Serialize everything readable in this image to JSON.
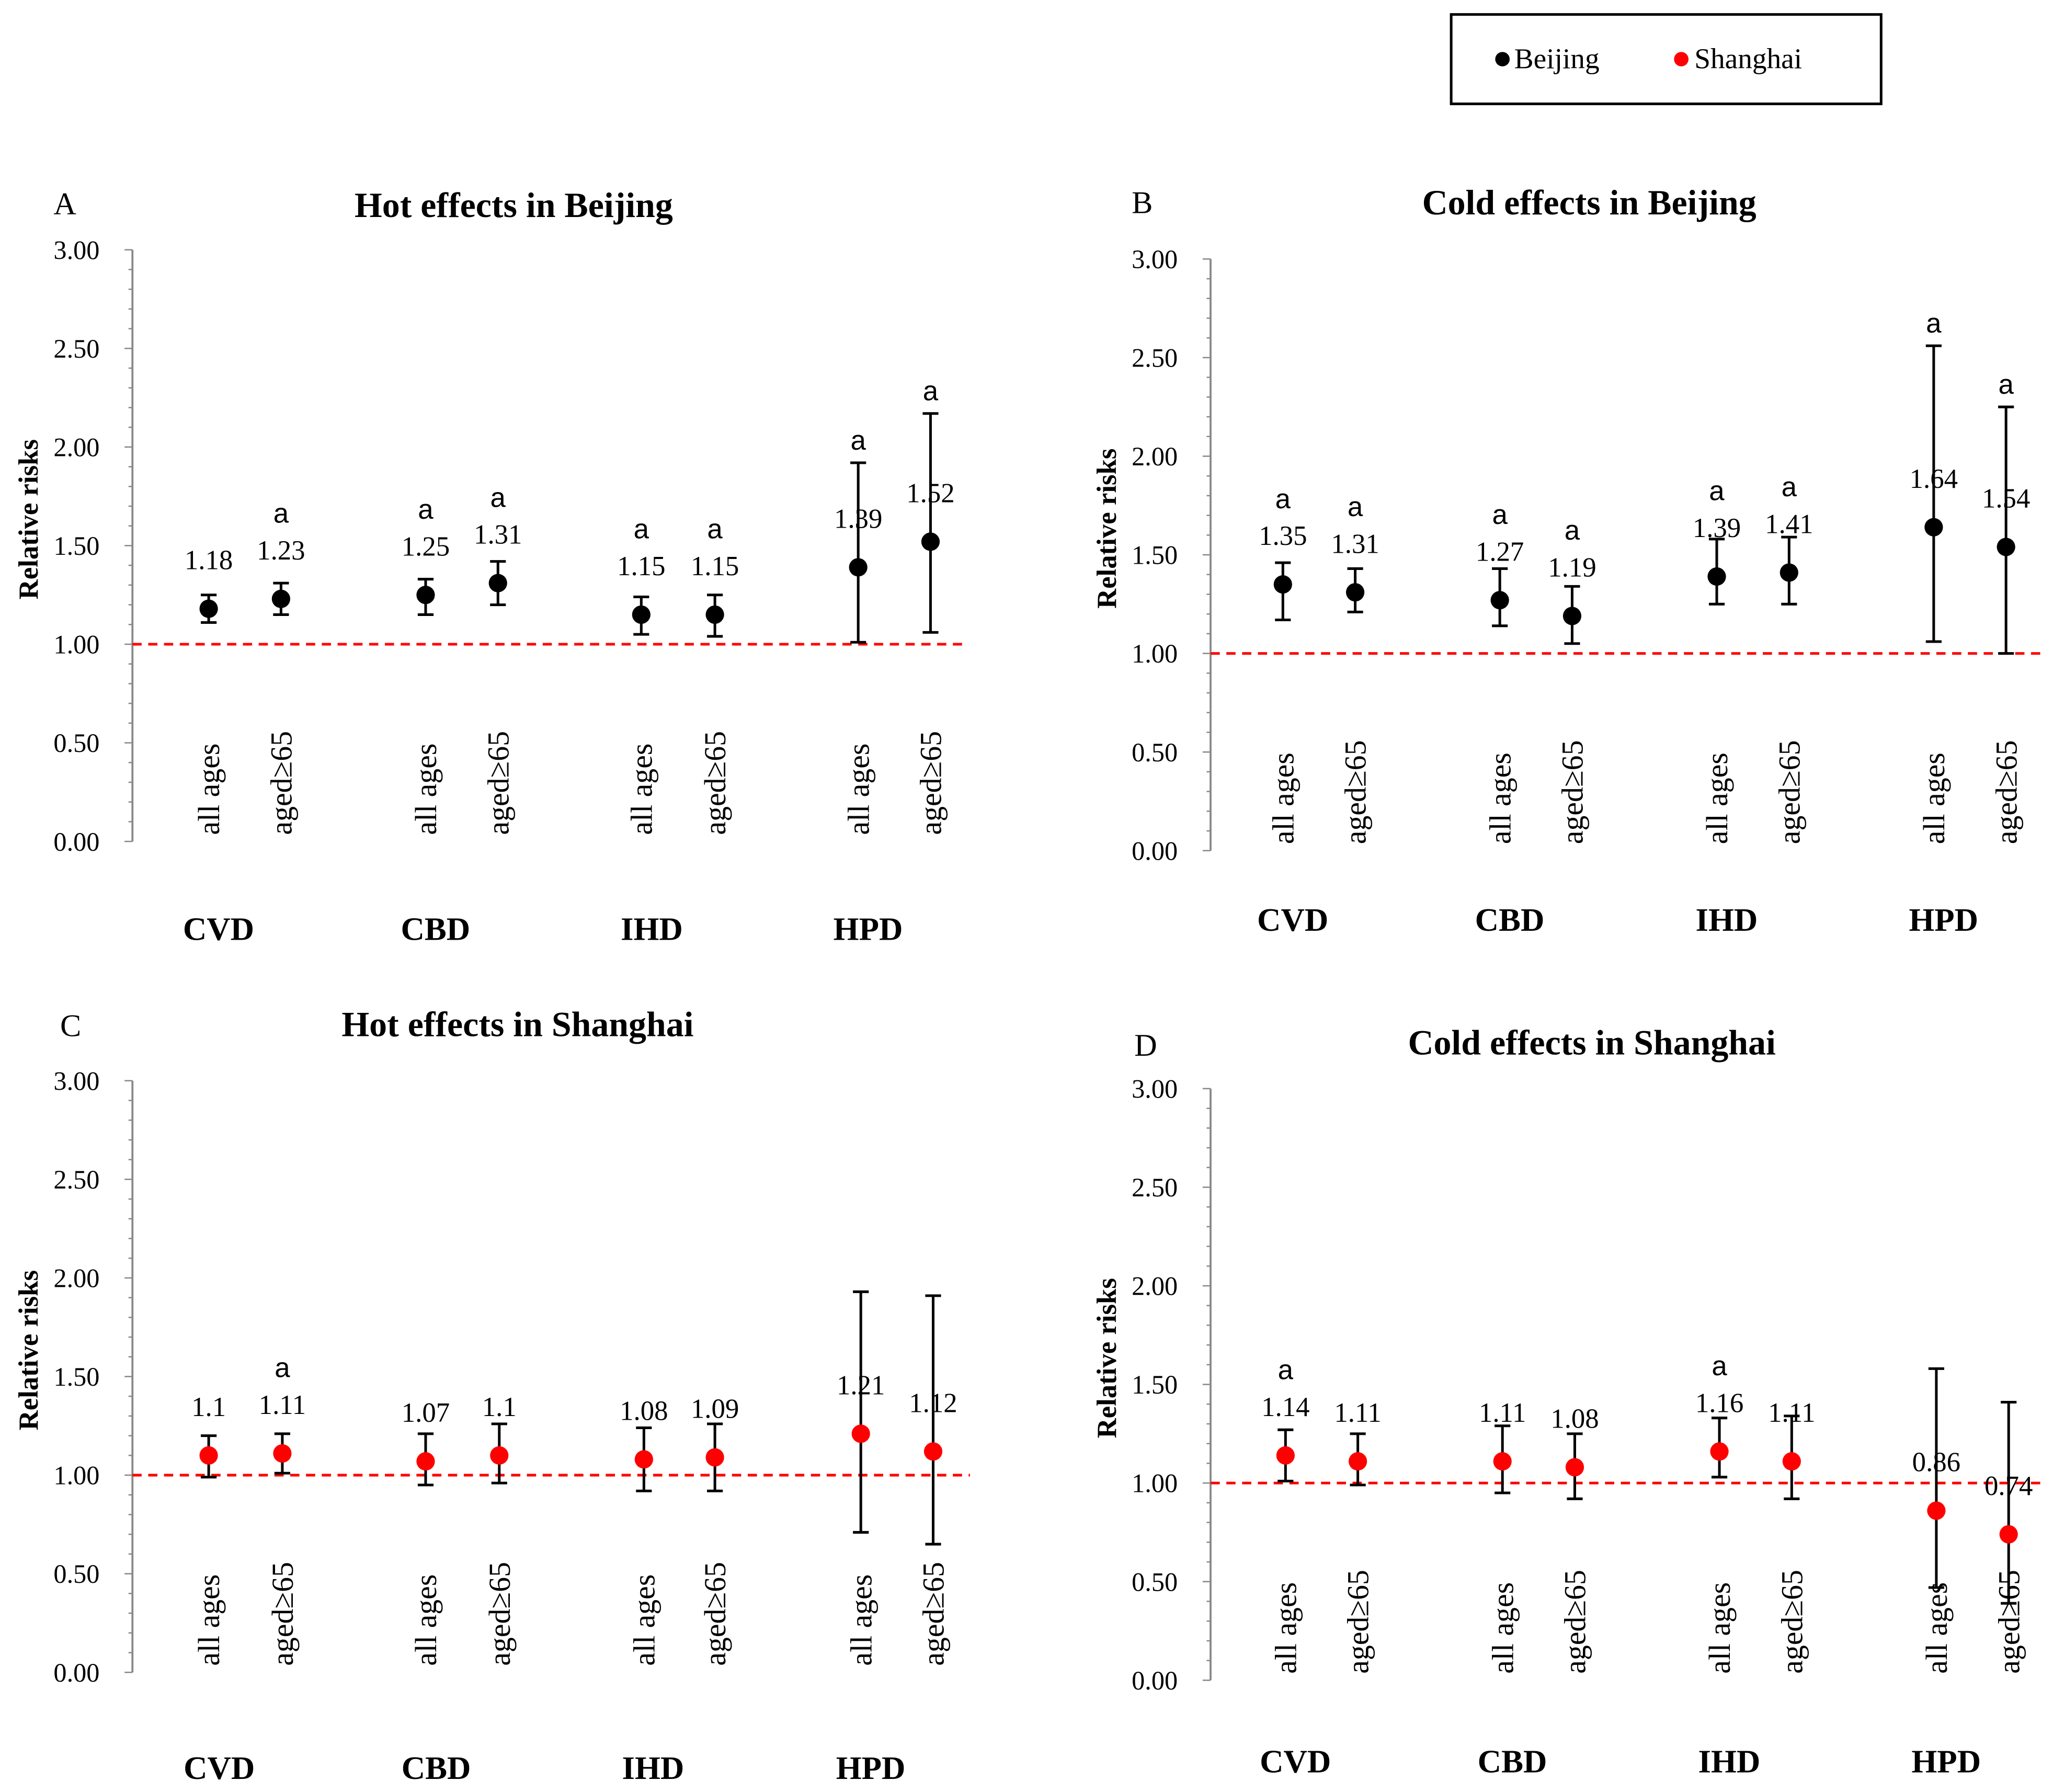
{
  "legend": {
    "items": [
      {
        "name": "Beijing",
        "color": "#000000"
      },
      {
        "name": "Shanghai",
        "color": "#ff0000"
      }
    ]
  },
  "chart_data": [
    {
      "type": "scatter",
      "panel": "A",
      "title": "Hot effects in Beijing",
      "ylabel": "Relative risks",
      "ylim": [
        0,
        3
      ],
      "yticks": [
        "0.00",
        "0.50",
        "1.00",
        "1.50",
        "2.00",
        "2.50",
        "3.00"
      ],
      "reference_line": 1.0,
      "series_name": "Beijing",
      "color": "#000000",
      "categories": [
        "CVD",
        "CBD",
        "IHD",
        "HPD"
      ],
      "groups": [
        "all ages",
        "aged≥65"
      ],
      "points": [
        {
          "cat": "CVD",
          "group": "all ages",
          "rr": 1.18,
          "lo": 1.11,
          "hi": 1.25,
          "label": "1.18",
          "sig": ""
        },
        {
          "cat": "CVD",
          "group": "aged≥65",
          "rr": 1.23,
          "lo": 1.15,
          "hi": 1.31,
          "label": "1.23",
          "sig": "a"
        },
        {
          "cat": "CBD",
          "group": "all ages",
          "rr": 1.25,
          "lo": 1.15,
          "hi": 1.33,
          "label": "1.25",
          "sig": "a"
        },
        {
          "cat": "CBD",
          "group": "aged≥65",
          "rr": 1.31,
          "lo": 1.2,
          "hi": 1.42,
          "label": "1.31",
          "sig": "a"
        },
        {
          "cat": "IHD",
          "group": "all ages",
          "rr": 1.15,
          "lo": 1.05,
          "hi": 1.24,
          "label": "1.15",
          "sig": "a"
        },
        {
          "cat": "IHD",
          "group": "aged≥65",
          "rr": 1.15,
          "lo": 1.04,
          "hi": 1.25,
          "label": "1.15",
          "sig": "a"
        },
        {
          "cat": "HPD",
          "group": "all ages",
          "rr": 1.39,
          "lo": 1.01,
          "hi": 1.92,
          "label": "1.39",
          "sig": "a"
        },
        {
          "cat": "HPD",
          "group": "aged≥65",
          "rr": 1.52,
          "lo": 1.06,
          "hi": 2.17,
          "label": "1.52",
          "sig": "a"
        }
      ]
    },
    {
      "type": "scatter",
      "panel": "B",
      "title": "Cold effects in Beijing",
      "ylabel": "Relative risks",
      "ylim": [
        0,
        3
      ],
      "yticks": [
        "0.00",
        "0.50",
        "1.00",
        "1.50",
        "2.00",
        "2.50",
        "3.00"
      ],
      "reference_line": 1.0,
      "series_name": "Beijing",
      "color": "#000000",
      "categories": [
        "CVD",
        "CBD",
        "IHD",
        "HPD"
      ],
      "groups": [
        "all ages",
        "aged≥65"
      ],
      "points": [
        {
          "cat": "CVD",
          "group": "all ages",
          "rr": 1.35,
          "lo": 1.17,
          "hi": 1.46,
          "label": "1.35",
          "sig": "a"
        },
        {
          "cat": "CVD",
          "group": "aged≥65",
          "rr": 1.31,
          "lo": 1.21,
          "hi": 1.43,
          "label": "1.31",
          "sig": "a"
        },
        {
          "cat": "CBD",
          "group": "all ages",
          "rr": 1.27,
          "lo": 1.14,
          "hi": 1.43,
          "label": "1.27",
          "sig": "a"
        },
        {
          "cat": "CBD",
          "group": "aged≥65",
          "rr": 1.19,
          "lo": 1.05,
          "hi": 1.34,
          "label": "1.19",
          "sig": "a"
        },
        {
          "cat": "IHD",
          "group": "all ages",
          "rr": 1.39,
          "lo": 1.25,
          "hi": 1.58,
          "label": "1.39",
          "sig": "a"
        },
        {
          "cat": "IHD",
          "group": "aged≥65",
          "rr": 1.41,
          "lo": 1.25,
          "hi": 1.59,
          "label": "1.41",
          "sig": "a"
        },
        {
          "cat": "HPD",
          "group": "all ages",
          "rr": 1.64,
          "lo": 1.06,
          "hi": 2.56,
          "label": "1.64",
          "sig": "a"
        },
        {
          "cat": "HPD",
          "group": "aged≥65",
          "rr": 1.54,
          "lo": 1.0,
          "hi": 2.25,
          "label": "1.54",
          "sig": "a"
        }
      ]
    },
    {
      "type": "scatter",
      "panel": "C",
      "title": "Hot effects in Shanghai",
      "ylabel": "Relative risks",
      "ylim": [
        0,
        3
      ],
      "yticks": [
        "0.00",
        "0.50",
        "1.00",
        "1.50",
        "2.00",
        "2.50",
        "3.00"
      ],
      "reference_line": 1.0,
      "series_name": "Shanghai",
      "color": "#ff0000",
      "categories": [
        "CVD",
        "CBD",
        "IHD",
        "HPD"
      ],
      "groups": [
        "all ages",
        "aged≥65"
      ],
      "points": [
        {
          "cat": "CVD",
          "group": "all ages",
          "rr": 1.1,
          "lo": 0.99,
          "hi": 1.2,
          "label": "1.1",
          "sig": ""
        },
        {
          "cat": "CVD",
          "group": "aged≥65",
          "rr": 1.11,
          "lo": 1.01,
          "hi": 1.21,
          "label": "1.11",
          "sig": "a"
        },
        {
          "cat": "CBD",
          "group": "all ages",
          "rr": 1.07,
          "lo": 0.95,
          "hi": 1.21,
          "label": "1.07",
          "sig": ""
        },
        {
          "cat": "CBD",
          "group": "aged≥65",
          "rr": 1.1,
          "lo": 0.96,
          "hi": 1.26,
          "label": "1.1",
          "sig": ""
        },
        {
          "cat": "IHD",
          "group": "all ages",
          "rr": 1.08,
          "lo": 0.92,
          "hi": 1.24,
          "label": "1.08",
          "sig": ""
        },
        {
          "cat": "IHD",
          "group": "aged≥65",
          "rr": 1.09,
          "lo": 0.92,
          "hi": 1.26,
          "label": "1.09",
          "sig": ""
        },
        {
          "cat": "HPD",
          "group": "all ages",
          "rr": 1.21,
          "lo": 0.71,
          "hi": 1.93,
          "label": "1.21",
          "sig": ""
        },
        {
          "cat": "HPD",
          "group": "aged≥65",
          "rr": 1.12,
          "lo": 0.65,
          "hi": 1.91,
          "label": "1.12",
          "sig": ""
        }
      ]
    },
    {
      "type": "scatter",
      "panel": "D",
      "title": "Cold effects in Shanghai",
      "ylabel": "Relative risks",
      "ylim": [
        0,
        3
      ],
      "yticks": [
        "0.00",
        "0.50",
        "1.00",
        "1.50",
        "2.00",
        "2.50",
        "3.00"
      ],
      "reference_line": 1.0,
      "series_name": "Shanghai",
      "color": "#ff0000",
      "categories": [
        "CVD",
        "CBD",
        "IHD",
        "HPD"
      ],
      "groups": [
        "all ages",
        "aged≥65"
      ],
      "points": [
        {
          "cat": "CVD",
          "group": "all ages",
          "rr": 1.14,
          "lo": 1.01,
          "hi": 1.27,
          "label": "1.14",
          "sig": "a"
        },
        {
          "cat": "CVD",
          "group": "aged≥65",
          "rr": 1.11,
          "lo": 0.99,
          "hi": 1.25,
          "label": "1.11",
          "sig": ""
        },
        {
          "cat": "CBD",
          "group": "all ages",
          "rr": 1.11,
          "lo": 0.95,
          "hi": 1.29,
          "label": "1.11",
          "sig": ""
        },
        {
          "cat": "CBD",
          "group": "aged≥65",
          "rr": 1.08,
          "lo": 0.92,
          "hi": 1.25,
          "label": "1.08",
          "sig": ""
        },
        {
          "cat": "IHD",
          "group": "all ages",
          "rr": 1.16,
          "lo": 1.03,
          "hi": 1.33,
          "label": "1.16",
          "sig": "a"
        },
        {
          "cat": "IHD",
          "group": "aged≥65",
          "rr": 1.11,
          "lo": 0.92,
          "hi": 1.34,
          "label": "1.11",
          "sig": ""
        },
        {
          "cat": "HPD",
          "group": "all ages",
          "rr": 0.86,
          "lo": 0.47,
          "hi": 1.58,
          "label": "0.86",
          "sig": ""
        },
        {
          "cat": "HPD",
          "group": "aged≥65",
          "rr": 0.74,
          "lo": 0.39,
          "hi": 1.41,
          "label": "0.74",
          "sig": ""
        }
      ]
    }
  ]
}
